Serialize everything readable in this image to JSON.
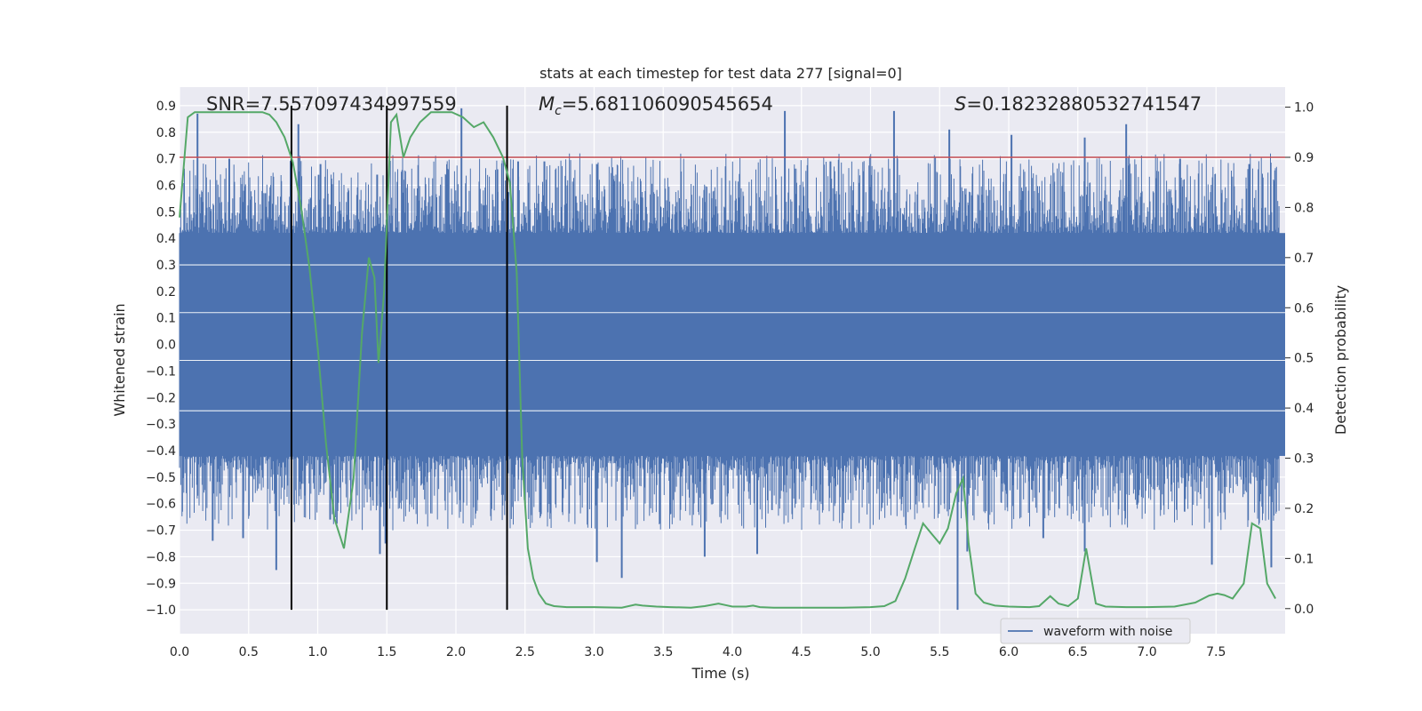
{
  "chart_data": {
    "type": "line",
    "title": "stats at each timestep for test data 277 [signal=0]",
    "xlabel": "Time (s)",
    "ylabel_left": "Whitened strain",
    "ylabel_right": "Detection probability",
    "xlim": [
      0.0,
      8.0
    ],
    "ylim_left": [
      -1.09,
      0.97
    ],
    "ylim_right": [
      -0.05,
      1.04
    ],
    "x_ticks": [
      0.0,
      0.5,
      1.0,
      1.5,
      2.0,
      2.5,
      3.0,
      3.5,
      4.0,
      4.5,
      5.0,
      5.5,
      6.0,
      6.5,
      7.0,
      7.5
    ],
    "y_ticks_left": [
      0.9,
      0.8,
      0.7,
      0.6,
      0.5,
      0.4,
      0.3,
      0.2,
      0.1,
      0.0,
      -0.1,
      -0.2,
      -0.3,
      -0.4,
      -0.5,
      -0.6,
      -0.7,
      -0.8,
      -0.9,
      -1.0
    ],
    "y_ticks_right": [
      1.0,
      0.9,
      0.8,
      0.7,
      0.6,
      0.5,
      0.4,
      0.3,
      0.2,
      0.1,
      0.0
    ],
    "stats": {
      "snr": "SNR=7.557097434997559",
      "mc_symbol": "M",
      "mc_sub": "c",
      "mc_value": "=5.681106090545654",
      "s_symbol": "S",
      "s_value": "=0.18232880532741547"
    },
    "legend": {
      "label": "waveform with noise",
      "placement": "lower-right"
    },
    "threshold": {
      "value": 0.9,
      "axis": "right",
      "color": "#c44e52"
    },
    "vertical_markers": [
      {
        "x": 0.81,
        "y_top": 0.9,
        "y_bottom": -1.0
      },
      {
        "x": 1.5,
        "y_top": 0.9,
        "y_bottom": -1.0
      },
      {
        "x": 2.37,
        "y_top": 0.9,
        "y_bottom": -1.0
      }
    ],
    "waveform": {
      "name": "waveform with noise",
      "color": "#4c72b0",
      "core_min": -0.42,
      "core_max": 0.42,
      "spikes": [
        {
          "x": 0.13,
          "y": 0.87
        },
        {
          "x": 0.36,
          "y": 0.7
        },
        {
          "x": 0.62,
          "y": 0.57
        },
        {
          "x": 0.86,
          "y": 0.83
        },
        {
          "x": 1.02,
          "y": 0.68
        },
        {
          "x": 1.43,
          "y": 0.64
        },
        {
          "x": 2.04,
          "y": 0.89
        },
        {
          "x": 2.3,
          "y": 0.66
        },
        {
          "x": 2.45,
          "y": 0.69
        },
        {
          "x": 2.64,
          "y": 0.69
        },
        {
          "x": 3.02,
          "y": 0.68
        },
        {
          "x": 4.38,
          "y": 0.88
        },
        {
          "x": 4.71,
          "y": 0.69
        },
        {
          "x": 5.17,
          "y": 0.88
        },
        {
          "x": 5.57,
          "y": 0.81
        },
        {
          "x": 6.02,
          "y": 0.79
        },
        {
          "x": 6.55,
          "y": 0.78
        },
        {
          "x": 6.85,
          "y": 0.83
        },
        {
          "x": 7.24,
          "y": 0.7
        },
        {
          "x": 7.74,
          "y": 0.68
        },
        {
          "x": 0.24,
          "y": -0.74
        },
        {
          "x": 0.46,
          "y": -0.73
        },
        {
          "x": 0.7,
          "y": -0.85
        },
        {
          "x": 1.09,
          "y": -0.66
        },
        {
          "x": 1.45,
          "y": -0.79
        },
        {
          "x": 1.49,
          "y": -0.75
        },
        {
          "x": 2.37,
          "y": -0.87
        },
        {
          "x": 3.02,
          "y": -0.82
        },
        {
          "x": 3.2,
          "y": -0.88
        },
        {
          "x": 3.8,
          "y": -0.8
        },
        {
          "x": 4.18,
          "y": -0.79
        },
        {
          "x": 5.63,
          "y": -1.0
        },
        {
          "x": 5.7,
          "y": -0.78
        },
        {
          "x": 6.25,
          "y": -0.73
        },
        {
          "x": 6.55,
          "y": -0.78
        },
        {
          "x": 7.47,
          "y": -0.83
        },
        {
          "x": 7.9,
          "y": -0.84
        }
      ]
    },
    "probability": {
      "name": "Detection probability",
      "color": "#55a868",
      "x": [
        0.0,
        0.06,
        0.11,
        0.2,
        0.4,
        0.6,
        0.65,
        0.7,
        0.76,
        0.82,
        0.88,
        0.94,
        1.0,
        1.06,
        1.12,
        1.19,
        1.26,
        1.32,
        1.37,
        1.41,
        1.44,
        1.48,
        1.53,
        1.57,
        1.62,
        1.67,
        1.74,
        1.82,
        1.9,
        1.97,
        2.05,
        2.13,
        2.2,
        2.27,
        2.34,
        2.39,
        2.44,
        2.48,
        2.52,
        2.56,
        2.6,
        2.65,
        2.71,
        2.8,
        3.0,
        3.2,
        3.3,
        3.35,
        3.45,
        3.55,
        3.7,
        3.8,
        3.9,
        3.95,
        4.0,
        4.1,
        4.15,
        4.2,
        4.3,
        4.5,
        4.8,
        5.0,
        5.1,
        5.18,
        5.25,
        5.32,
        5.38,
        5.44,
        5.5,
        5.56,
        5.62,
        5.67,
        5.71,
        5.76,
        5.82,
        5.9,
        6.0,
        6.15,
        6.22,
        6.3,
        6.36,
        6.43,
        6.5,
        6.56,
        6.63,
        6.7,
        6.85,
        7.0,
        7.2,
        7.35,
        7.45,
        7.51,
        7.56,
        7.62,
        7.7,
        7.76,
        7.82,
        7.87,
        7.93
      ],
      "y": [
        0.78,
        0.98,
        0.99,
        0.99,
        0.99,
        0.99,
        0.985,
        0.97,
        0.94,
        0.89,
        0.8,
        0.68,
        0.52,
        0.33,
        0.18,
        0.12,
        0.26,
        0.55,
        0.7,
        0.66,
        0.49,
        0.63,
        0.97,
        0.985,
        0.9,
        0.94,
        0.97,
        0.99,
        0.99,
        0.99,
        0.98,
        0.96,
        0.97,
        0.94,
        0.9,
        0.85,
        0.67,
        0.3,
        0.12,
        0.06,
        0.03,
        0.01,
        0.005,
        0.003,
        0.003,
        0.002,
        0.008,
        0.006,
        0.004,
        0.003,
        0.002,
        0.005,
        0.01,
        0.007,
        0.004,
        0.004,
        0.006,
        0.003,
        0.002,
        0.002,
        0.002,
        0.003,
        0.005,
        0.015,
        0.06,
        0.12,
        0.17,
        0.15,
        0.13,
        0.16,
        0.23,
        0.26,
        0.13,
        0.03,
        0.012,
        0.006,
        0.004,
        0.003,
        0.005,
        0.025,
        0.01,
        0.005,
        0.02,
        0.12,
        0.01,
        0.004,
        0.003,
        0.003,
        0.004,
        0.012,
        0.026,
        0.03,
        0.027,
        0.02,
        0.05,
        0.17,
        0.16,
        0.05,
        0.02
      ]
    }
  }
}
